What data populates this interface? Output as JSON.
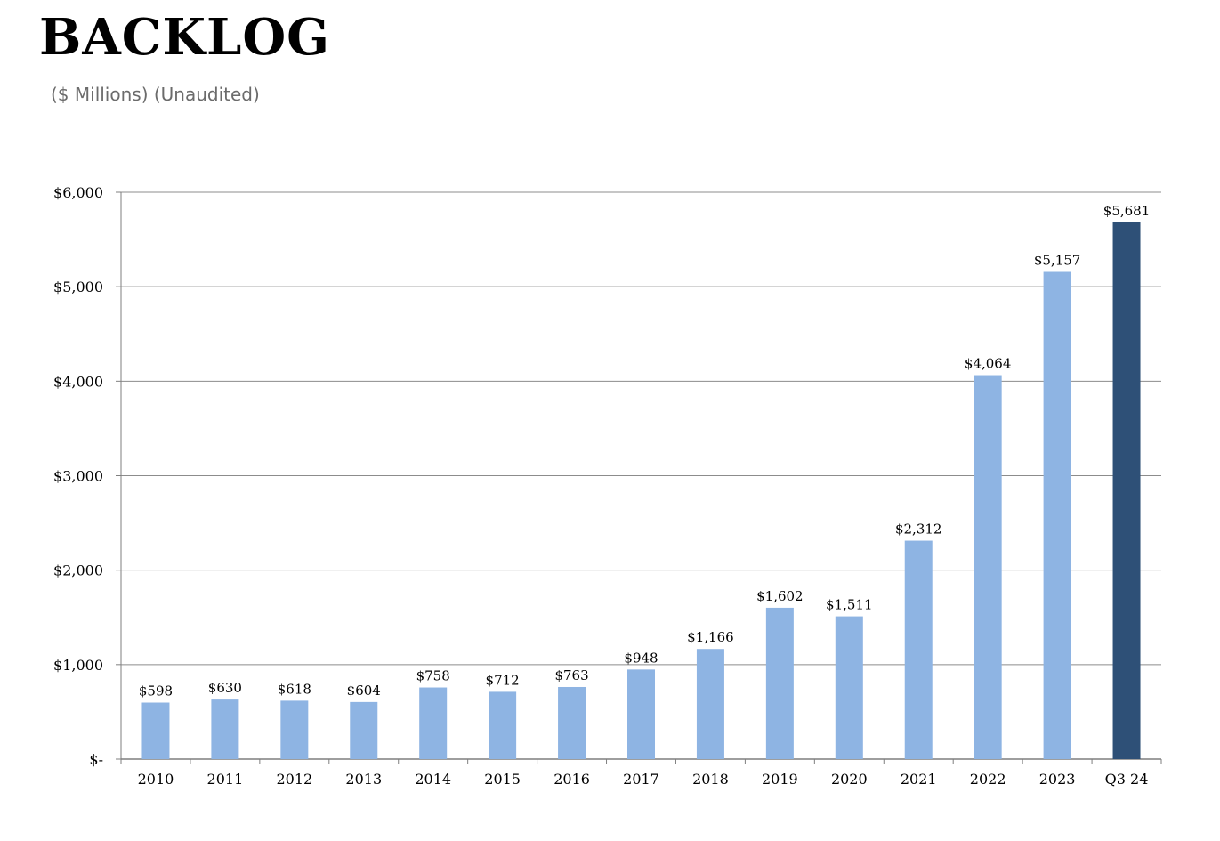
{
  "title": "BACKLOG",
  "subtitle": "($ Millions) (Unaudited)",
  "colors": {
    "bar": "#8eb4e3",
    "bar_highlight": "#2e5077",
    "grid": "#8c8c8c",
    "axis": "#7f7f7f"
  },
  "chart_data": {
    "type": "bar",
    "categories": [
      "2010",
      "2011",
      "2012",
      "2013",
      "2014",
      "2015",
      "2016",
      "2017",
      "2018",
      "2019",
      "2020",
      "2021",
      "2022",
      "2023",
      "Q3 24"
    ],
    "values": [
      598,
      630,
      618,
      604,
      758,
      712,
      763,
      948,
      1166,
      1602,
      1511,
      2312,
      4064,
      5157,
      5681
    ],
    "data_labels": [
      "$598",
      "$630",
      "$618",
      "$604",
      "$758",
      "$712",
      "$763",
      "$948",
      "$1,166",
      "$1,602",
      "$1,511",
      "$2,312",
      "$4,064",
      "$5,157",
      "$5,681"
    ],
    "highlight_index": 14,
    "ylim": [
      0,
      6000
    ],
    "yticks": [
      0,
      1000,
      2000,
      3000,
      4000,
      5000,
      6000
    ],
    "ytick_labels": [
      "$-",
      "$1,000",
      "$2,000",
      "$3,000",
      "$4,000",
      "$5,000",
      "$6,000"
    ],
    "grid": true,
    "legend": "none"
  }
}
